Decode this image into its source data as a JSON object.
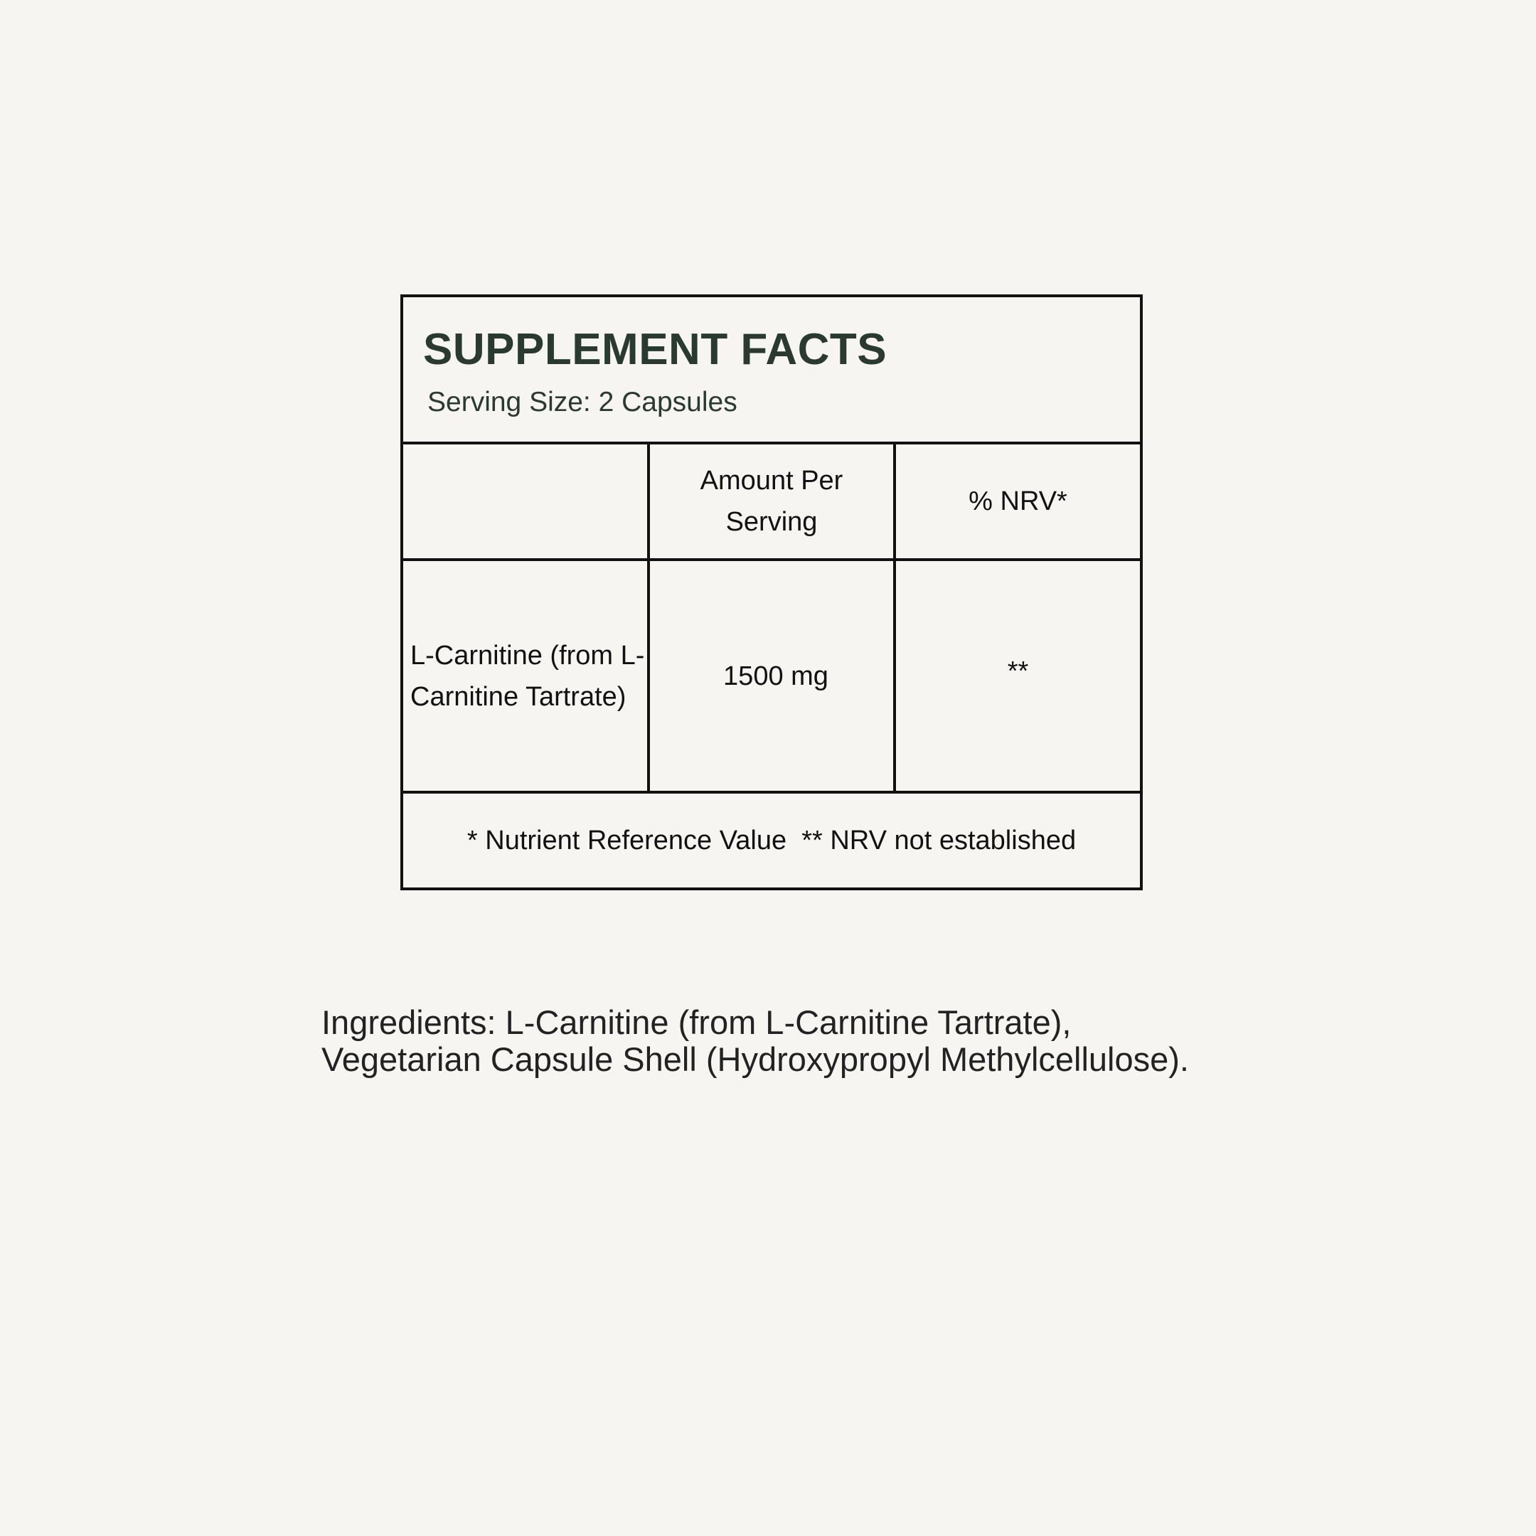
{
  "panel": {
    "title": "SUPPLEMENT FACTS",
    "serving_size": "Serving Size: 2 Capsules",
    "columns": [
      "",
      "Amount Per Serving",
      "% NRV*"
    ],
    "rows": [
      {
        "name": "L-Carnitine (from L-Carnitine Tartrate)",
        "amount": "1500 mg",
        "nrv": "**"
      }
    ],
    "footnote": "* Nutrient Reference Value  ** NRV not established"
  },
  "ingredients": {
    "line1": "Ingredients: L-Carnitine (from L-Carnitine Tartrate),",
    "line2": "Vegetarian Capsule Shell (Hydroxypropyl Methylcellulose)."
  },
  "colors": {
    "title": "#2b3a30",
    "background": "#f6f5f1",
    "border": "#111111"
  }
}
